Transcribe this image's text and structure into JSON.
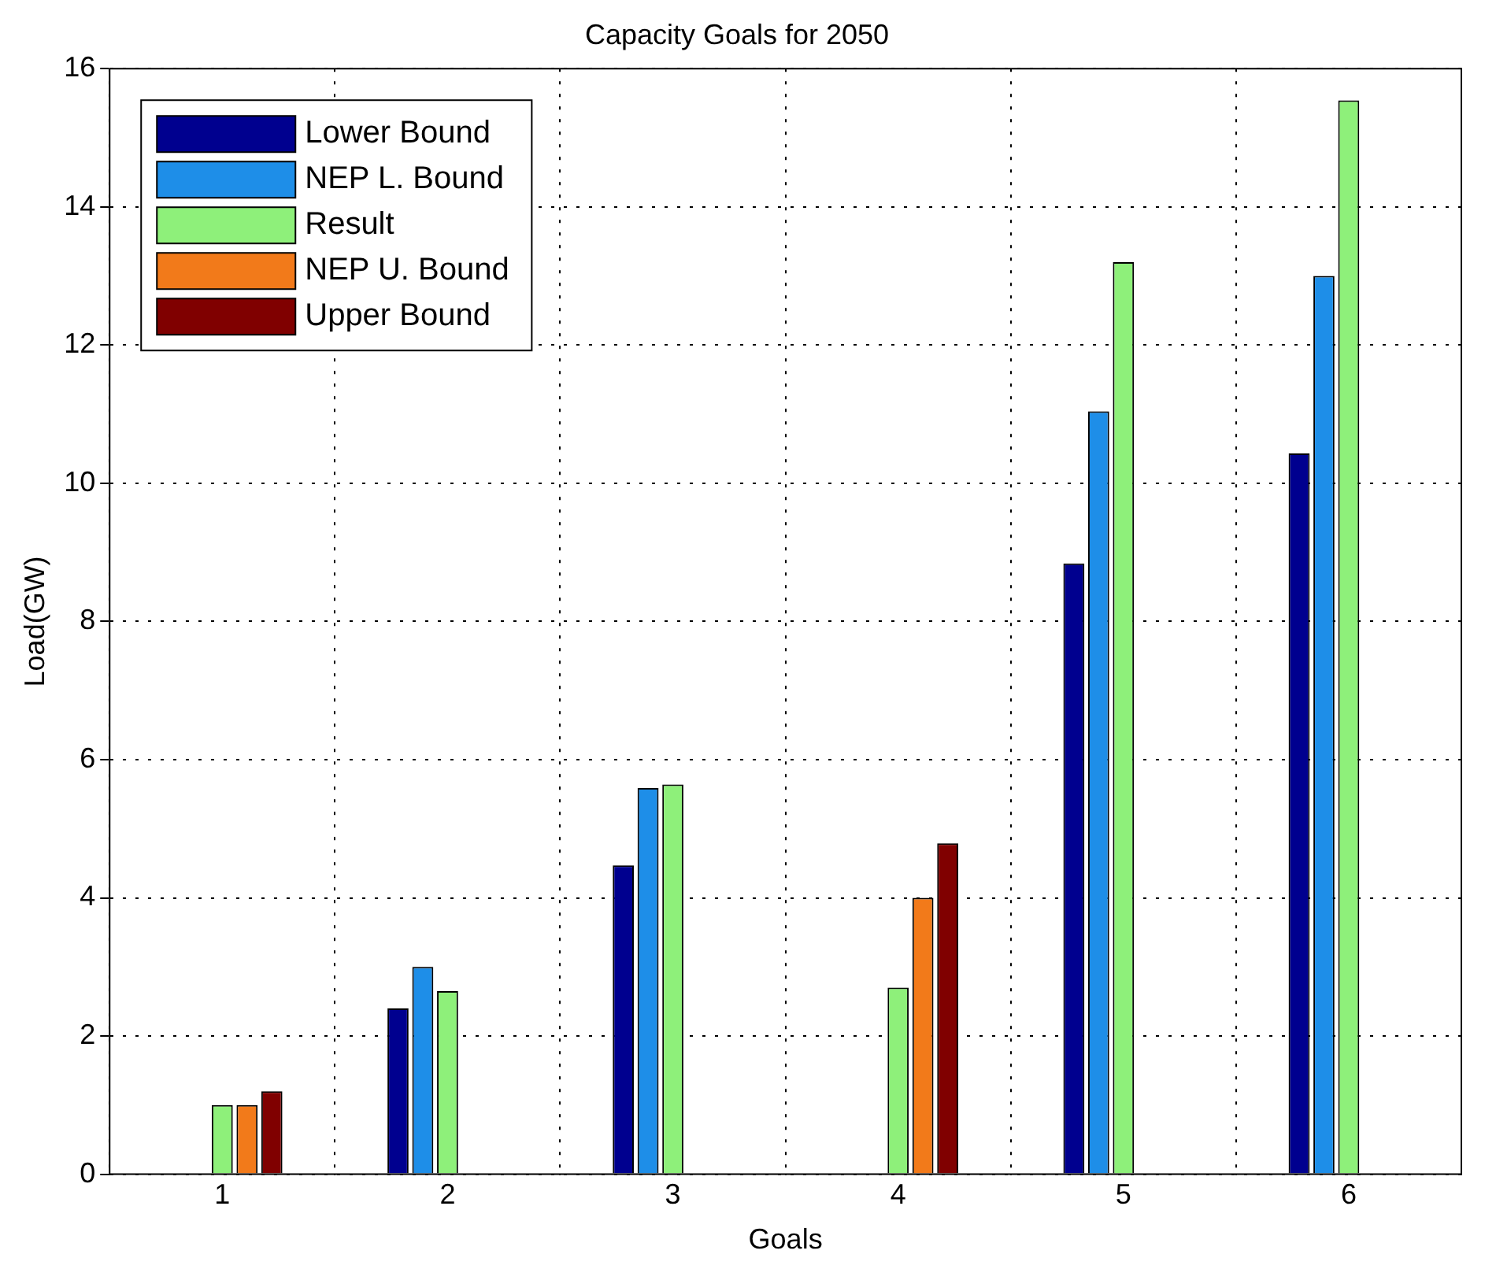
{
  "chart_data": {
    "type": "bar",
    "title": "Capacity Goals for 2050",
    "xlabel": "Goals",
    "ylabel": "Load(GW)",
    "categories": [
      "1",
      "2",
      "3",
      "4",
      "5",
      "6"
    ],
    "series": [
      {
        "name": "Lower Bound",
        "color": "#00008f",
        "values": [
          null,
          2.4,
          4.47,
          null,
          8.84,
          10.43
        ]
      },
      {
        "name": "NEP L. Bound",
        "color": "#1e8ee8",
        "values": [
          null,
          3.0,
          5.59,
          null,
          11.04,
          13.0
        ]
      },
      {
        "name": "Result",
        "color": "#8ef07a",
        "values": [
          1.0,
          2.65,
          5.64,
          2.7,
          13.2,
          15.54
        ]
      },
      {
        "name": "NEP U. Bound",
        "color": "#f27a1a",
        "values": [
          1.0,
          null,
          null,
          4.0,
          null,
          null
        ]
      },
      {
        "name": "Upper Bound",
        "color": "#800000",
        "values": [
          1.2,
          null,
          null,
          4.79,
          null,
          null
        ]
      }
    ],
    "ylim": [
      0,
      16
    ],
    "yticks": [
      0,
      2,
      4,
      6,
      8,
      10,
      12,
      14,
      16
    ],
    "grid": true,
    "legend": "top left"
  }
}
